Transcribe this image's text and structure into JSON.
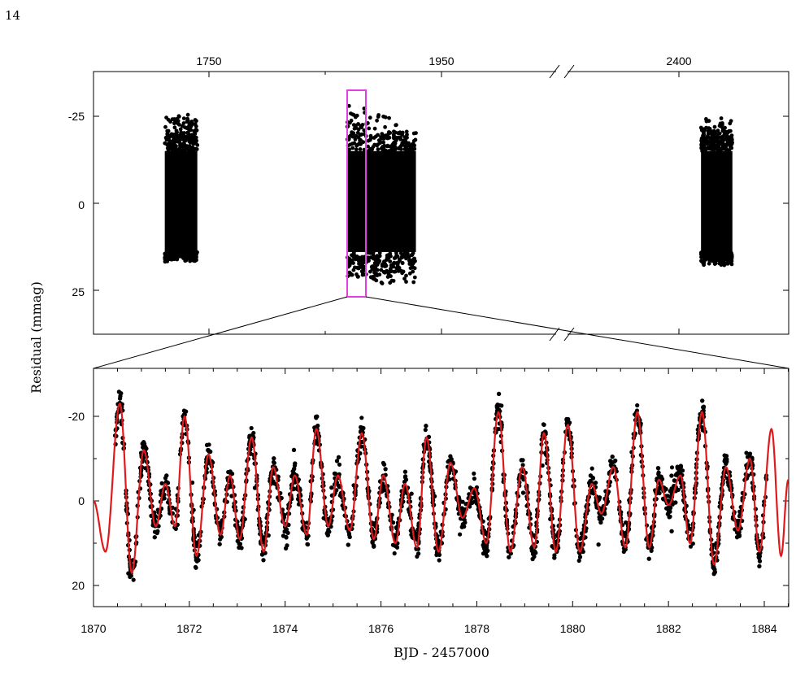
{
  "page_number": "14",
  "colors": {
    "data": "#000000",
    "model": "#e0191b",
    "highlight": "#e040e0",
    "axis": "#000000"
  },
  "chart_data": [
    {
      "type": "scatter",
      "panel": "top",
      "axis_break_between": [
        1950,
        2400
      ],
      "x_tick_labels_top": [
        "1750",
        "1950",
        "2400"
      ],
      "y_tick_labels": [
        "-25",
        "0",
        "25"
      ],
      "ylim": [
        37,
        -25
      ],
      "y_inverted": true,
      "grid": false,
      "segments": [
        {
          "x_start": 1712,
          "x_end": 1740,
          "y_min": 17,
          "y_max": -27
        },
        {
          "x_start": 1869,
          "x_end": 1928,
          "y_min": 24,
          "y_max": -31
        },
        {
          "x_start": 2419,
          "x_end": 2446,
          "y_min": 18,
          "y_max": -25
        }
      ],
      "highlight_box": {
        "x_range": [
          1869.5,
          1884.5
        ],
        "label": ""
      }
    },
    {
      "type": "scatter",
      "panel": "bottom",
      "xlabel": "BJD - 2457000",
      "ylabel": "Residual (mmag)",
      "x_ticks": [
        "1870",
        "1872",
        "1874",
        "1876",
        "1878",
        "1880",
        "1882",
        "1884"
      ],
      "y_ticks": [
        "-20",
        "0",
        "20"
      ],
      "xlim": [
        1870,
        1884.5
      ],
      "ylim": [
        30,
        -30
      ],
      "y_inverted": true,
      "grid": false,
      "series": [
        {
          "kind": "points"
        },
        {
          "kind": "model-curve"
        }
      ],
      "envelope": {
        "x": [
          1870.5,
          1871.0,
          1871.5,
          1872.0,
          1872.5,
          1873.0,
          1873.5,
          1874.0,
          1874.5,
          1875.0,
          1875.5,
          1876.0,
          1876.5,
          1877.0,
          1877.5,
          1878.0,
          1878.5,
          1879.0,
          1879.5,
          1880.0,
          1880.5,
          1881.0,
          1881.5,
          1882.0,
          1882.5,
          1883.0,
          1883.5,
          1884.0
        ],
        "y_max": [
          24,
          16,
          14,
          15,
          14,
          14,
          15,
          15,
          13,
          15,
          16,
          14,
          14,
          16,
          14,
          13,
          16,
          14,
          14,
          14,
          13,
          14,
          15,
          14,
          14,
          15,
          15,
          14
        ],
        "y_min": [
          -29,
          -15,
          -7,
          -26,
          -14,
          -15,
          -17,
          -10,
          -16,
          -11,
          -23,
          -12,
          -17,
          -19,
          -12,
          -24,
          -20,
          -16,
          -14,
          -20,
          -15,
          -12,
          -26,
          -12,
          -30,
          -12,
          -10,
          -14
        ]
      },
      "model_curve_peaks": [
        [
          1870.0,
          0
        ],
        [
          1870.25,
          12
        ],
        [
          1870.55,
          -23
        ],
        [
          1870.8,
          17
        ],
        [
          1871.05,
          -12
        ],
        [
          1871.3,
          6
        ],
        [
          1871.5,
          -4
        ],
        [
          1871.7,
          6
        ],
        [
          1871.9,
          -20
        ],
        [
          1872.15,
          13
        ],
        [
          1872.4,
          -11
        ],
        [
          1872.65,
          8
        ],
        [
          1872.85,
          -6
        ],
        [
          1873.05,
          9
        ],
        [
          1873.3,
          -15
        ],
        [
          1873.55,
          12
        ],
        [
          1873.75,
          -8
        ],
        [
          1874.0,
          6
        ],
        [
          1874.2,
          -6
        ],
        [
          1874.45,
          8
        ],
        [
          1874.65,
          -17
        ],
        [
          1874.9,
          6
        ],
        [
          1875.1,
          -6
        ],
        [
          1875.35,
          7
        ],
        [
          1875.6,
          -16
        ],
        [
          1875.85,
          9
        ],
        [
          1876.05,
          -6
        ],
        [
          1876.3,
          10
        ],
        [
          1876.5,
          -4
        ],
        [
          1876.75,
          11
        ],
        [
          1876.95,
          -15
        ],
        [
          1877.2,
          12
        ],
        [
          1877.45,
          -9
        ],
        [
          1877.7,
          4
        ],
        [
          1877.95,
          -3
        ],
        [
          1878.2,
          10
        ],
        [
          1878.45,
          -21
        ],
        [
          1878.7,
          12
        ],
        [
          1878.95,
          -8
        ],
        [
          1879.2,
          11
        ],
        [
          1879.4,
          -16
        ],
        [
          1879.65,
          12
        ],
        [
          1879.9,
          -18
        ],
        [
          1880.15,
          12
        ],
        [
          1880.4,
          -4
        ],
        [
          1880.6,
          3
        ],
        [
          1880.85,
          -8
        ],
        [
          1881.1,
          11
        ],
        [
          1881.35,
          -21
        ],
        [
          1881.6,
          11
        ],
        [
          1881.8,
          -5
        ],
        [
          1882.0,
          1
        ],
        [
          1882.25,
          -6
        ],
        [
          1882.45,
          10
        ],
        [
          1882.7,
          -21
        ],
        [
          1882.95,
          15
        ],
        [
          1883.2,
          -8
        ],
        [
          1883.45,
          7
        ],
        [
          1883.7,
          -10
        ],
        [
          1883.9,
          12
        ],
        [
          1884.15,
          -17
        ],
        [
          1884.35,
          13
        ],
        [
          1884.5,
          -5
        ]
      ]
    }
  ]
}
